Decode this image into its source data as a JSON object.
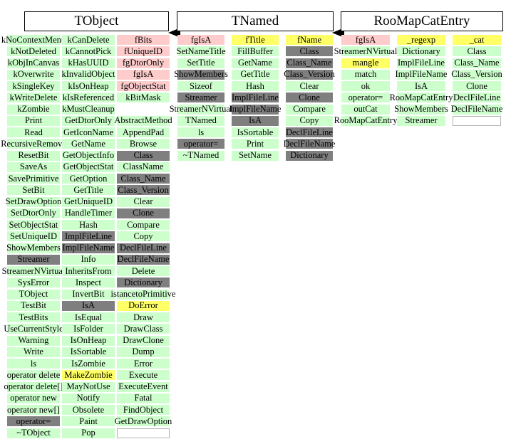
{
  "palette": {
    "g": "#ccffcc",
    "p": "#ffcccc",
    "y": "#ffff66",
    "d": "#7f7f7f",
    "w": "#ffffff",
    "n": "transparent"
  },
  "arrows": [
    {
      "from": "TNamed",
      "to": "TObject",
      "direction": "left"
    },
    {
      "from": "RooMapCatEntry",
      "to": "TNamed",
      "direction": "left"
    }
  ],
  "classes": [
    {
      "name": "TObject",
      "columns": [
        [
          [
            "kNoContextMenu",
            "g"
          ],
          [
            "kNotDeleted",
            "g"
          ],
          [
            "kObjInCanvas",
            "g"
          ],
          [
            "kOverwrite",
            "g"
          ],
          [
            "kSingleKey",
            "g"
          ],
          [
            "kWriteDelete",
            "g"
          ],
          [
            "kZombie",
            "g"
          ],
          [
            "Print",
            "g"
          ],
          [
            "Read",
            "g"
          ],
          [
            "RecursiveRemove",
            "g"
          ],
          [
            "ResetBit",
            "g"
          ],
          [
            "SaveAs",
            "g"
          ],
          [
            "SavePrimitive",
            "g"
          ],
          [
            "SetBit",
            "g"
          ],
          [
            "SetDrawOption",
            "g"
          ],
          [
            "SetDtorOnly",
            "g"
          ],
          [
            "SetObjectStat",
            "g"
          ],
          [
            "SetUniqueID",
            "g"
          ],
          [
            "ShowMembers",
            "g"
          ],
          [
            "Streamer",
            "d"
          ],
          [
            "StreamerNVirtual",
            "g"
          ],
          [
            "SysError",
            "g"
          ],
          [
            "TObject",
            "g"
          ],
          [
            "TestBit",
            "g"
          ],
          [
            "TestBits",
            "g"
          ],
          [
            "UseCurrentStyle",
            "g"
          ],
          [
            "Warning",
            "g"
          ],
          [
            "Write",
            "g"
          ],
          [
            "ls",
            "g"
          ],
          [
            "operator delete",
            "g"
          ],
          [
            "operator delete[]",
            "g"
          ],
          [
            "operator new",
            "g"
          ],
          [
            "operator new[]",
            "g"
          ],
          [
            "operator=",
            "d"
          ],
          [
            "~TObject",
            "g"
          ]
        ],
        [
          [
            "kCanDelete",
            "g"
          ],
          [
            "kCannotPick",
            "g"
          ],
          [
            "kHasUUID",
            "g"
          ],
          [
            "kInvalidObject",
            "g"
          ],
          [
            "kIsOnHeap",
            "g"
          ],
          [
            "kIsReferenced",
            "g"
          ],
          [
            "kMustCleanup",
            "g"
          ],
          [
            "GetDtorOnly",
            "g"
          ],
          [
            "GetIconName",
            "g"
          ],
          [
            "GetName",
            "g"
          ],
          [
            "GetObjectInfo",
            "g"
          ],
          [
            "GetObjectStat",
            "g"
          ],
          [
            "GetOption",
            "g"
          ],
          [
            "GetTitle",
            "g"
          ],
          [
            "GetUniqueID",
            "g"
          ],
          [
            "HandleTimer",
            "g"
          ],
          [
            "Hash",
            "g"
          ],
          [
            "ImplFileLine",
            "d"
          ],
          [
            "ImplFileName",
            "d"
          ],
          [
            "Info",
            "g"
          ],
          [
            "InheritsFrom",
            "g"
          ],
          [
            "Inspect",
            "g"
          ],
          [
            "InvertBit",
            "g"
          ],
          [
            "IsA",
            "d"
          ],
          [
            "IsEqual",
            "g"
          ],
          [
            "IsFolder",
            "g"
          ],
          [
            "IsOnHeap",
            "g"
          ],
          [
            "IsSortable",
            "g"
          ],
          [
            "IsZombie",
            "g"
          ],
          [
            "MakeZombie",
            "y"
          ],
          [
            "MayNotUse",
            "g"
          ],
          [
            "Notify",
            "g"
          ],
          [
            "Obsolete",
            "g"
          ],
          [
            "Paint",
            "g"
          ],
          [
            "Pop",
            "g"
          ]
        ],
        [
          [
            "fBits",
            "p"
          ],
          [
            "fUniqueID",
            "p"
          ],
          [
            "fgDtorOnly",
            "p"
          ],
          [
            "fgIsA",
            "p"
          ],
          [
            "fgObjectStat",
            "p"
          ],
          [
            "kBitMask",
            "g"
          ],
          [
            "",
            "n"
          ],
          [
            "AbstractMethod",
            "g"
          ],
          [
            "AppendPad",
            "g"
          ],
          [
            "Browse",
            "g"
          ],
          [
            "Class",
            "d"
          ],
          [
            "ClassName",
            "g"
          ],
          [
            "Class_Name",
            "d"
          ],
          [
            "Class_Version",
            "d"
          ],
          [
            "Clear",
            "g"
          ],
          [
            "Clone",
            "d"
          ],
          [
            "Compare",
            "g"
          ],
          [
            "Copy",
            "g"
          ],
          [
            "DeclFileLine",
            "d"
          ],
          [
            "DeclFileName",
            "d"
          ],
          [
            "Delete",
            "g"
          ],
          [
            "Dictionary",
            "d"
          ],
          [
            "istancetoPrimitive",
            "g"
          ],
          [
            "DoError",
            "y"
          ],
          [
            "Draw",
            "g"
          ],
          [
            "DrawClass",
            "g"
          ],
          [
            "DrawClone",
            "g"
          ],
          [
            "Dump",
            "g"
          ],
          [
            "Error",
            "g"
          ],
          [
            "Execute",
            "g"
          ],
          [
            "ExecuteEvent",
            "g"
          ],
          [
            "Fatal",
            "g"
          ],
          [
            "FindObject",
            "g"
          ],
          [
            "GetDrawOption",
            "g"
          ],
          [
            "",
            "w"
          ]
        ]
      ]
    },
    {
      "name": "TNamed",
      "columns": [
        [
          [
            "fgIsA",
            "p"
          ],
          [
            "SetNameTitle",
            "g"
          ],
          [
            "SetTitle",
            "g"
          ],
          [
            "ShowMembers",
            "d"
          ],
          [
            "Sizeof",
            "g"
          ],
          [
            "Streamer",
            "d"
          ],
          [
            "StreamerNVirtual",
            "g"
          ],
          [
            "TNamed",
            "g"
          ],
          [
            "ls",
            "g"
          ],
          [
            "operator=",
            "d"
          ],
          [
            "~TNamed",
            "g"
          ]
        ],
        [
          [
            "fTitle",
            "y"
          ],
          [
            "FillBuffer",
            "g"
          ],
          [
            "GetName",
            "g"
          ],
          [
            "GetTitle",
            "g"
          ],
          [
            "Hash",
            "g"
          ],
          [
            "ImplFileLine",
            "d"
          ],
          [
            "ImplFileName",
            "d"
          ],
          [
            "IsA",
            "d"
          ],
          [
            "IsSortable",
            "g"
          ],
          [
            "Print",
            "g"
          ],
          [
            "SetName",
            "g"
          ]
        ],
        [
          [
            "fName",
            "y"
          ],
          [
            "Class",
            "d"
          ],
          [
            "Class_Name",
            "d"
          ],
          [
            "Class_Version",
            "d"
          ],
          [
            "Clear",
            "g"
          ],
          [
            "Clone",
            "d"
          ],
          [
            "Compare",
            "g"
          ],
          [
            "Copy",
            "g"
          ],
          [
            "DeclFileLine",
            "d"
          ],
          [
            "DeclFileName",
            "d"
          ],
          [
            "Dictionary",
            "d"
          ]
        ]
      ]
    },
    {
      "name": "RooMapCatEntry",
      "columns": [
        [
          [
            "fgIsA",
            "p"
          ],
          [
            "StreamerNVirtual",
            "g"
          ],
          [
            "mangle",
            "y"
          ],
          [
            "match",
            "g"
          ],
          [
            "ok",
            "g"
          ],
          [
            "operator=",
            "g"
          ],
          [
            "outCat",
            "g"
          ],
          [
            "RooMapCatEntry",
            "g"
          ]
        ],
        [
          [
            "_regexp",
            "y"
          ],
          [
            "Dictionary",
            "g"
          ],
          [
            "ImplFileLine",
            "g"
          ],
          [
            "ImplFileName",
            "g"
          ],
          [
            "IsA",
            "g"
          ],
          [
            "RooMapCatEntry",
            "g"
          ],
          [
            "ShowMembers",
            "g"
          ],
          [
            "Streamer",
            "g"
          ]
        ],
        [
          [
            "_cat",
            "y"
          ],
          [
            "Class",
            "g"
          ],
          [
            "Class_Name",
            "g"
          ],
          [
            "Class_Version",
            "g"
          ],
          [
            "Clone",
            "g"
          ],
          [
            "DeclFileLine",
            "g"
          ],
          [
            "DeclFileName",
            "g"
          ],
          [
            "",
            "w"
          ]
        ]
      ]
    }
  ]
}
